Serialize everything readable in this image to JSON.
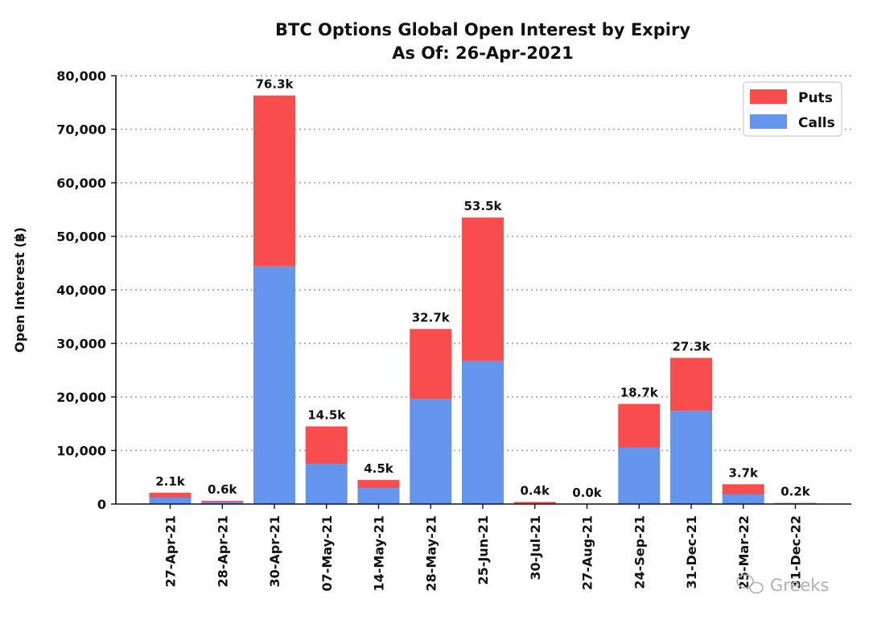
{
  "chart_data": {
    "type": "bar",
    "stacked": true,
    "title": "BTC Options Global Open Interest by Expiry",
    "subtitle": "As Of: 26-Apr-2021",
    "xlabel": "",
    "ylabel": "Open Interest (฿)",
    "ylim": [
      0,
      80000
    ],
    "yticks": [
      "0",
      "10,000",
      "20,000",
      "30,000",
      "40,000",
      "50,000",
      "60,000",
      "70,000",
      "80,000"
    ],
    "grid": true,
    "legend_position": "top-right",
    "categories": [
      "27-Apr-21",
      "28-Apr-21",
      "30-Apr-21",
      "07-May-21",
      "14-May-21",
      "28-May-21",
      "25-Jun-21",
      "30-Jul-21",
      "27-Aug-21",
      "24-Sep-21",
      "31-Dec-21",
      "25-Mar-22",
      "31-Dec-22"
    ],
    "series": [
      {
        "name": "Calls",
        "color": "#6495ed",
        "values": [
          1200,
          450,
          44400,
          7500,
          3000,
          19700,
          26700,
          150,
          20,
          10600,
          17400,
          1800,
          200
        ]
      },
      {
        "name": "Puts",
        "color": "#f94d4d",
        "values": [
          900,
          150,
          31900,
          7000,
          1500,
          13000,
          26800,
          250,
          10,
          8100,
          9900,
          1900,
          30
        ]
      }
    ],
    "data_labels": [
      "2.1k",
      "0.6k",
      "76.3k",
      "14.5k",
      "4.5k",
      "32.7k",
      "53.5k",
      "0.4k",
      "0.0k",
      "18.7k",
      "27.3k",
      "3.7k",
      "0.2k"
    ],
    "legend_order": [
      "Puts",
      "Calls"
    ]
  },
  "watermark": {
    "text": "Greeks",
    "icon": "wechat-icon"
  }
}
